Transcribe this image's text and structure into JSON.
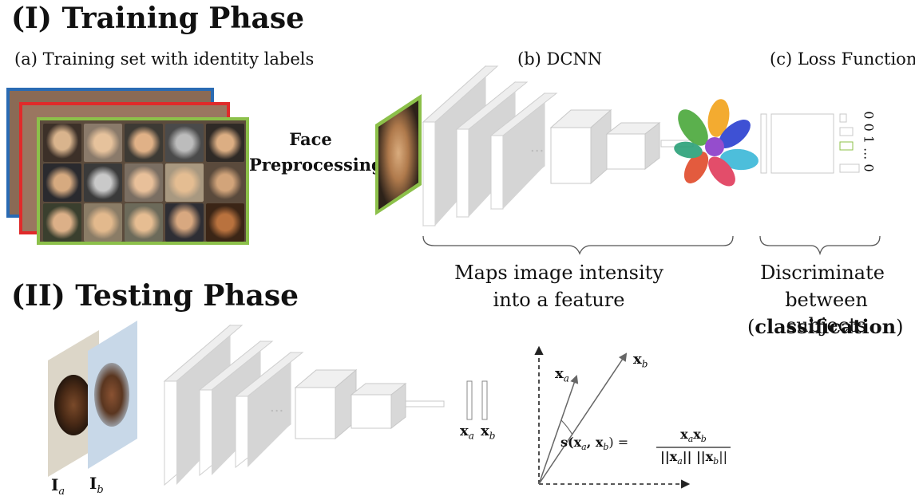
{
  "training": {
    "title": "(I) Training Phase",
    "label_a": "(a) Training set with identity labels",
    "label_b": "(b) DCNN",
    "label_c": "(c) Loss Function",
    "preprocess_line1": "Face",
    "preprocess_line2": "Preprocessing",
    "maps_line1": "Maps image intensity",
    "maps_line2": "into a feature",
    "discriminate_line1": "Discriminate",
    "discriminate_line2": "between subjects",
    "classification_open": "(",
    "classification_word": "classification",
    "classification_close": ")",
    "output_vector": "0 0 1 ... 0",
    "dots": "..."
  },
  "testing": {
    "title": "(II) Testing Phase",
    "face_a_label": "I",
    "face_a_sub": "a",
    "face_b_label": "I",
    "face_b_sub": "b",
    "feat_a": "x",
    "feat_a_sub": "a",
    "feat_b": "x",
    "feat_b_sub": "b",
    "vec_a": "x",
    "vec_a_sub": "a",
    "vec_b": "x",
    "vec_b_sub": "b",
    "sim_lhs": "s(x",
    "sim_lhs_mid": ", x",
    "sim_lhs_end": ") =",
    "sim_num": "x",
    "sim_num_mid": "x",
    "sim_den": "||x",
    "sim_den_mid": "|| ||x",
    "sim_den_end": "||",
    "dots": "..."
  },
  "colors": {
    "set_blue": "#2a6bb3",
    "set_red": "#e02a2a",
    "set_green": "#8cc04a",
    "block_face": "#ffffff",
    "block_side": "#d4d4d4",
    "block_edge": "#c8c8c8"
  }
}
